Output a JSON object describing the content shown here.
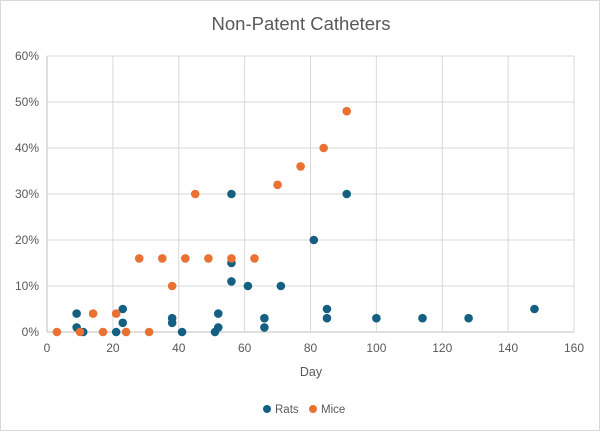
{
  "chart_data": {
    "type": "scatter",
    "title": "Non-Patent Catheters",
    "xlabel": "Day",
    "ylabel": "",
    "xlim": [
      0,
      160
    ],
    "ylim": [
      0,
      60
    ],
    "x_ticks": [
      "0",
      "20",
      "40",
      "60",
      "80",
      "100",
      "120",
      "140",
      "160"
    ],
    "y_ticks": [
      "0%",
      "10%",
      "20%",
      "30%",
      "40%",
      "50%",
      "60%"
    ],
    "grid": true,
    "legend_position": "bottom",
    "series": [
      {
        "name": "Rats",
        "color": "#156082",
        "points": [
          [
            9,
            4
          ],
          [
            9,
            1
          ],
          [
            11,
            0
          ],
          [
            21,
            0
          ],
          [
            23,
            5
          ],
          [
            23,
            2
          ],
          [
            38,
            3
          ],
          [
            38,
            2
          ],
          [
            41,
            0
          ],
          [
            51,
            0
          ],
          [
            52,
            1
          ],
          [
            52,
            4
          ],
          [
            56,
            30
          ],
          [
            56,
            15
          ],
          [
            56,
            11
          ],
          [
            61,
            10
          ],
          [
            66,
            3
          ],
          [
            66,
            1
          ],
          [
            71,
            10
          ],
          [
            81,
            20
          ],
          [
            85,
            5
          ],
          [
            85,
            3
          ],
          [
            91,
            30
          ],
          [
            100,
            3
          ],
          [
            114,
            3
          ],
          [
            128,
            3
          ],
          [
            148,
            5
          ]
        ]
      },
      {
        "name": "Mice",
        "color": "#E97132",
        "points": [
          [
            3,
            0
          ],
          [
            10,
            0
          ],
          [
            14,
            4
          ],
          [
            17,
            0
          ],
          [
            21,
            4
          ],
          [
            24,
            0
          ],
          [
            28,
            16
          ],
          [
            31,
            0
          ],
          [
            35,
            16
          ],
          [
            38,
            10
          ],
          [
            42,
            16
          ],
          [
            45,
            30
          ],
          [
            49,
            16
          ],
          [
            56,
            16
          ],
          [
            63,
            16
          ],
          [
            70,
            32
          ],
          [
            77,
            36
          ],
          [
            84,
            40
          ],
          [
            91,
            48
          ]
        ]
      }
    ]
  }
}
